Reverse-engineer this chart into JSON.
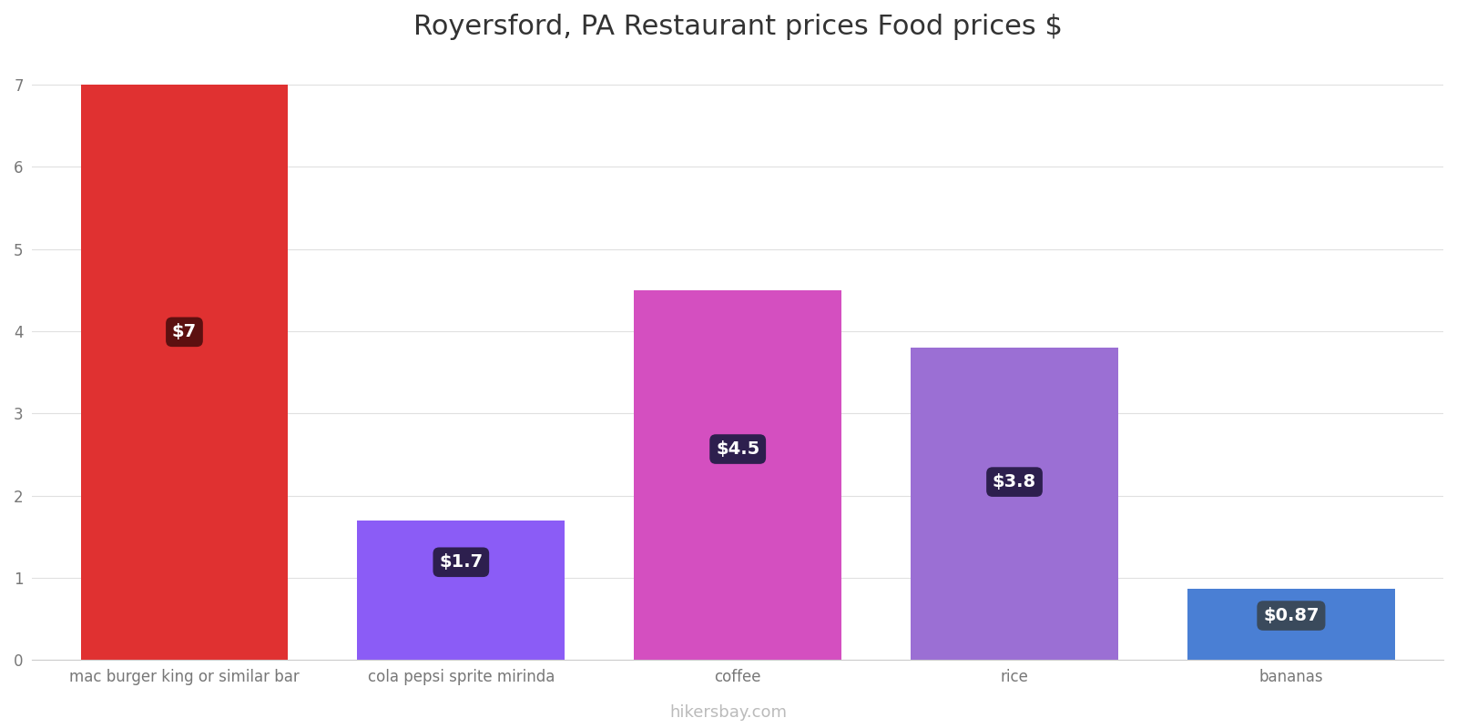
{
  "title": "Royersford, PA Restaurant prices Food prices $",
  "categories": [
    "mac burger king or similar bar",
    "cola pepsi sprite mirinda",
    "coffee",
    "rice",
    "bananas"
  ],
  "values": [
    7.0,
    1.7,
    4.5,
    3.8,
    0.87
  ],
  "bar_colors": [
    "#e03131",
    "#8b5cf6",
    "#d44fc0",
    "#9b6fd4",
    "#4a7fd4"
  ],
  "label_texts": [
    "$7",
    "$1.7",
    "$4.5",
    "$3.8",
    "$0.87"
  ],
  "label_box_colors": [
    "#5c1010",
    "#2d1f4e",
    "#2d1f4e",
    "#2d1f4e",
    "#3a4a5c"
  ],
  "ylim": [
    0,
    7.3
  ],
  "yticks": [
    0,
    1,
    2,
    3,
    4,
    5,
    6,
    7
  ],
  "title_fontsize": 22,
  "watermark": "hikersbay.com",
  "background_color": "#ffffff",
  "grid_color": "#e0e0e0"
}
